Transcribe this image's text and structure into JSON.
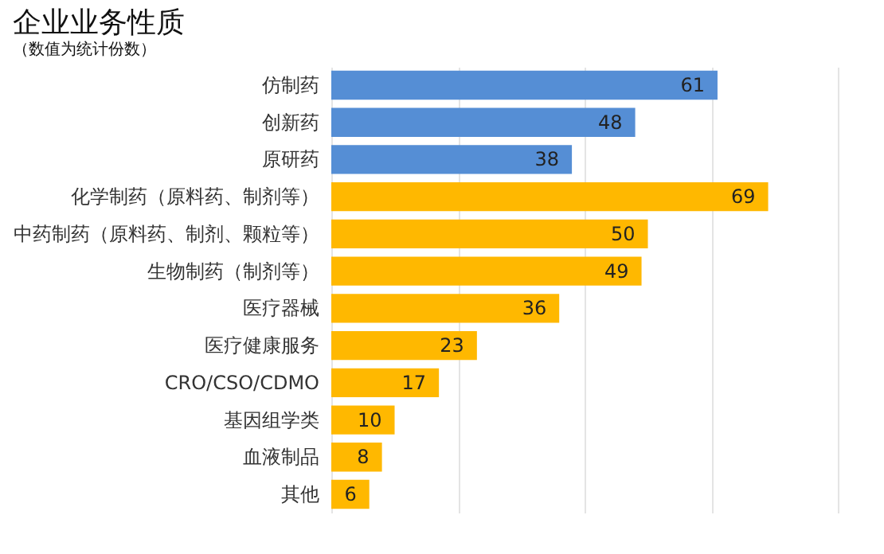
{
  "chart_data": {
    "type": "bar",
    "orientation": "horizontal",
    "title": "企业业务性质",
    "subtitle": "（数值为统计份数）",
    "categories": [
      "仿制药",
      "创新药",
      "原研药",
      null,
      "化学制药（原料药、制剂等）",
      "中药制药（原料药、制剂、颗粒等）",
      "生物制药（制剂等）",
      "医疗器械",
      "医疗健康服务",
      "CRO/CSO/CDMO",
      "基因组学类",
      "血液制品",
      "其他"
    ],
    "values": [
      61,
      48,
      38,
      null,
      69,
      50,
      49,
      36,
      23,
      17,
      10,
      8,
      6
    ],
    "colors": [
      "#558ed5",
      "#558ed5",
      "#558ed5",
      "#558ed5",
      "#ffb800",
      "#ffb800",
      "#ffb800",
      "#ffb800",
      "#ffb800",
      "#ffb800",
      "#ffb800",
      "#ffb800",
      "#ffb800"
    ],
    "xlim": [
      0,
      80
    ],
    "xticks": [
      {
        "value": 0,
        "label": null
      },
      {
        "value": 20,
        "label": null
      },
      {
        "value": 40,
        "label": null
      },
      {
        "value": 60,
        "label": null
      },
      {
        "value": 80,
        "label": null
      }
    ],
    "grid": "x",
    "data_labels": true
  }
}
